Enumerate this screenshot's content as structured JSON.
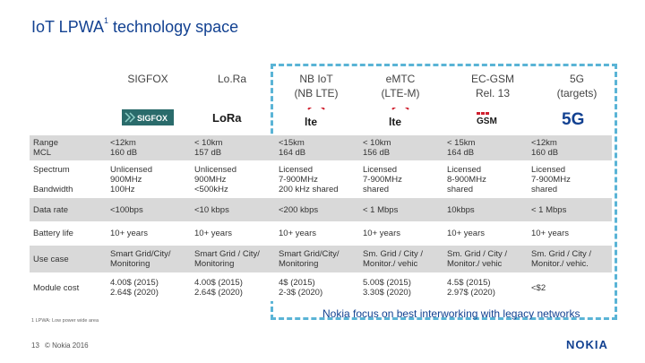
{
  "title": {
    "main": "IoT LPWA",
    "sup": "1",
    "rest": " technology space"
  },
  "columns": [
    {
      "line1": "SIGFOX",
      "line2": "",
      "logo": "SIGFOX"
    },
    {
      "line1": "Lo.Ra",
      "line2": "",
      "logo": "LoRa"
    },
    {
      "line1": "NB IoT",
      "line2": "(NB LTE)",
      "logo": "lte"
    },
    {
      "line1": "eMTC",
      "line2": "(LTE-M)",
      "logo": "lte"
    },
    {
      "line1": "EC-GSM",
      "line2": "Rel. 13",
      "logo": "GSM"
    },
    {
      "line1": "5G",
      "line2": "(targets)",
      "logo": "5G"
    }
  ],
  "rows": [
    {
      "label": [
        "Range",
        "MCL"
      ],
      "cells": [
        [
          "<12km",
          "160 dB"
        ],
        [
          "< 10km",
          "157 dB"
        ],
        [
          "<15km",
          "164 dB"
        ],
        [
          "< 10km",
          "156 dB"
        ],
        [
          "< 15km",
          "164 dB"
        ],
        [
          "<12km",
          "160 dB"
        ]
      ]
    },
    {
      "label": [
        "Spectrum",
        "",
        "Bandwidth"
      ],
      "cells": [
        [
          "Unlicensed",
          "900MHz",
          "100Hz"
        ],
        [
          "Unlicensed",
          "900MHz",
          "<500kHz"
        ],
        [
          "Licensed",
          "7-900MHz",
          "200 kHz shared"
        ],
        [
          "Licensed",
          "7-900MHz",
          "shared"
        ],
        [
          "Licensed",
          "8-900MHz",
          "shared"
        ],
        [
          "Licensed",
          "7-900MHz",
          "shared"
        ]
      ]
    },
    {
      "label": [
        "Data rate"
      ],
      "cells": [
        [
          "<100bps"
        ],
        [
          "<10 kbps"
        ],
        [
          "<200 kbps"
        ],
        [
          "< 1 Mbps"
        ],
        [
          "10kbps"
        ],
        [
          "< 1 Mbps"
        ]
      ]
    },
    {
      "label": [
        "Battery life"
      ],
      "cells": [
        [
          "10+ years"
        ],
        [
          "10+ years"
        ],
        [
          "10+ years"
        ],
        [
          "10+ years"
        ],
        [
          "10+ years"
        ],
        [
          "10+ years"
        ]
      ]
    },
    {
      "label": [
        "Use case"
      ],
      "cells": [
        [
          "Smart Grid/City/",
          "Monitoring"
        ],
        [
          "Smart Grid / City/",
          "Monitoring"
        ],
        [
          "Smart Grid/City/",
          "Monitoring"
        ],
        [
          "Sm. Grid / City /",
          "Monitor./ vehic"
        ],
        [
          "Sm. Grid / City /",
          "Monitor./ vehic"
        ],
        [
          "Sm. Grid / City /",
          "Monitor./ vehic."
        ]
      ]
    },
    {
      "label": [
        "Module cost"
      ],
      "cells": [
        [
          "4.00$ (2015)",
          "2.64$ (2020)"
        ],
        [
          "4.00$ (2015)",
          "2.64$ (2020)"
        ],
        [
          "4$ (2015)",
          "2-3$ (2020)"
        ],
        [
          "5.00$ (2015)",
          "3.30$ (2020)"
        ],
        [
          "4.5$ (2015)",
          "2.97$ (2020)"
        ],
        [
          "<$2"
        ]
      ]
    }
  ],
  "footnote": "1 LPWA: Low power wide area",
  "caption": "Nokia focus on best interworking with legacy networks",
  "page_number": "13",
  "copyright": "© Nokia 2016",
  "brand": "NOKIA",
  "colors": {
    "accent": "#124191",
    "dash": "#5ab4d6",
    "row_shade": "#d9d9d9",
    "lte_red": "#d0202f",
    "sigfox_teal": "#2a6b6b"
  }
}
